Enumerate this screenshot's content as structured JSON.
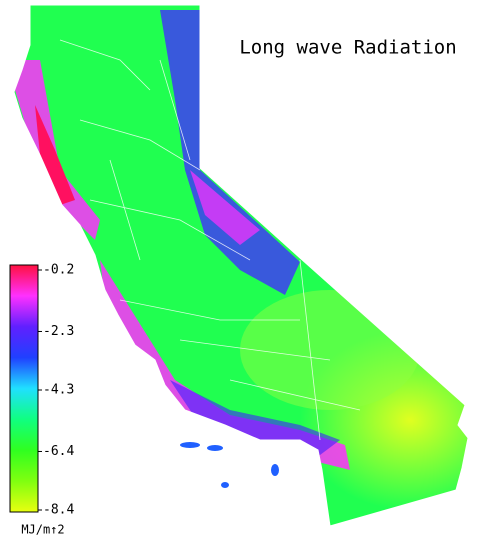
{
  "title": "Long wave Radiation",
  "legend": {
    "ticks": [
      -0.2,
      -2.3,
      -4.3,
      -6.4,
      -8.4
    ],
    "unit": "MJ/m↑2",
    "colors": [
      "#ff1040",
      "#ff30ff",
      "#6020ff",
      "#2040ff",
      "#20e0ff",
      "#10ff80",
      "#30ff20",
      "#80ff10",
      "#e8ff10"
    ]
  }
}
